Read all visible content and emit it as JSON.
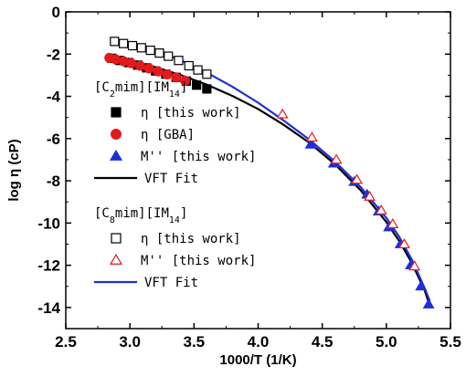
{
  "chart_data": {
    "type": "scatter",
    "xlabel": "1000/T (1/K)",
    "ylabel": "log η (cP)",
    "xlim": [
      2.5,
      5.5
    ],
    "ylim": [
      -15,
      0
    ],
    "xticks": [
      "2.5",
      "3.0",
      "3.5",
      "4.0",
      "4.5",
      "5.0",
      "5.5"
    ],
    "yticks": [
      "0",
      "-2",
      "-4",
      "-6",
      "-8",
      "-10",
      "-12",
      "-14"
    ],
    "grid": false,
    "legend_position": "left",
    "groups": [
      {
        "title_main": "[C",
        "title_sub1": "2",
        "title_mid": "mim][IM",
        "title_sub2": "14",
        "title_end": "]",
        "entries": [
          {
            "label": "η [this work]",
            "marker": "square",
            "filled": true,
            "color": "#000000"
          },
          {
            "label": "η [GBA]",
            "marker": "circle",
            "filled": true,
            "color": "#e31a1c"
          },
          {
            "label": "M'' [this work]",
            "marker": "triangle",
            "filled": true,
            "color": "#1f2fd6"
          },
          {
            "label": "VFT Fit",
            "marker": "line",
            "color": "#000000"
          }
        ]
      },
      {
        "title_main": "[C",
        "title_sub1": "8",
        "title_mid": "mim][IM",
        "title_sub2": "14",
        "title_end": "]",
        "entries": [
          {
            "label": "η [this work]",
            "marker": "square",
            "filled": false,
            "color": "#000000"
          },
          {
            "label": "M'' [this work]",
            "marker": "triangle",
            "filled": false,
            "color": "#e31a1c"
          },
          {
            "label": "VFT Fit",
            "marker": "line",
            "color": "#1f2fd6"
          }
        ]
      }
    ],
    "series": [
      {
        "marker": "square",
        "filled": true,
        "color": "#000000",
        "x": [
          2.86,
          2.92,
          2.99,
          3.06,
          3.13,
          3.2,
          3.28,
          3.36,
          3.44,
          3.52,
          3.6
        ],
        "y": [
          -2.2,
          -2.3,
          -2.4,
          -2.52,
          -2.65,
          -2.8,
          -2.95,
          -3.1,
          -3.28,
          -3.47,
          -3.65
        ]
      },
      {
        "marker": "circle",
        "filled": true,
        "color": "#e31a1c",
        "x": [
          2.84,
          2.89,
          2.95,
          3.01,
          3.08,
          3.15,
          3.22,
          3.29,
          3.36,
          3.43
        ],
        "y": [
          -2.18,
          -2.25,
          -2.34,
          -2.43,
          -2.55,
          -2.68,
          -2.82,
          -2.96,
          -3.1,
          -3.26
        ]
      },
      {
        "marker": "triangle",
        "filled": true,
        "color": "#1f2fd6",
        "x": [
          4.41,
          4.59,
          4.75,
          4.85,
          4.94,
          5.02,
          5.11,
          5.19,
          5.27,
          5.33
        ],
        "y": [
          -6.28,
          -7.18,
          -8.05,
          -8.65,
          -9.45,
          -10.2,
          -11.0,
          -12.0,
          -13.0,
          -13.85
        ]
      },
      {
        "marker": "square",
        "filled": false,
        "color": "#000000",
        "x": [
          2.88,
          2.95,
          3.02,
          3.09,
          3.16,
          3.23,
          3.3,
          3.38,
          3.46,
          3.53,
          3.6
        ],
        "y": [
          -1.4,
          -1.5,
          -1.6,
          -1.7,
          -1.82,
          -1.95,
          -2.1,
          -2.3,
          -2.55,
          -2.75,
          -2.95
        ]
      },
      {
        "marker": "triangle",
        "filled": false,
        "color": "#e31a1c",
        "x": [
          4.19,
          4.42,
          4.61,
          4.77,
          4.87,
          4.96,
          5.05,
          5.14,
          5.22
        ],
        "y": [
          -4.85,
          -5.95,
          -7.0,
          -7.95,
          -8.75,
          -9.4,
          -10.05,
          -11.0,
          -12.05
        ]
      },
      {
        "marker": "line",
        "color": "#000000",
        "x": [
          2.85,
          3.0,
          3.2,
          3.4,
          3.6,
          3.8,
          4.0,
          4.2,
          4.4,
          4.6,
          4.8,
          5.0,
          5.1,
          5.2,
          5.3,
          5.33
        ],
        "y": [
          -2.1,
          -2.3,
          -2.62,
          -3.0,
          -3.45,
          -3.98,
          -4.6,
          -5.35,
          -6.2,
          -7.22,
          -8.45,
          -9.95,
          -10.85,
          -11.9,
          -13.2,
          -13.75
        ]
      },
      {
        "marker": "line",
        "color": "#1f2fd6",
        "x": [
          2.85,
          3.0,
          3.2,
          3.4,
          3.6,
          3.8,
          4.0,
          4.2,
          4.4,
          4.6,
          4.8,
          5.0,
          5.1,
          5.2,
          5.3,
          5.34
        ],
        "y": [
          -1.3,
          -1.45,
          -1.82,
          -2.3,
          -2.88,
          -3.55,
          -4.3,
          -5.15,
          -6.05,
          -7.1,
          -8.3,
          -9.75,
          -10.65,
          -11.75,
          -13.1,
          -13.7
        ]
      }
    ]
  }
}
